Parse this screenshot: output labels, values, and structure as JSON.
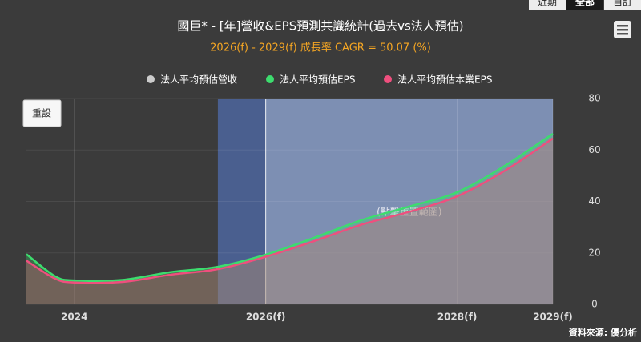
{
  "tabs": [
    "近期",
    "全部",
    "自訂"
  ],
  "reset_button": "重設",
  "chart_data": {
    "type": "line",
    "title": "國巨* - [年]營收&EPS預測共識統計(過去vs法人預估)",
    "subtitle": "2026(f) - 2029(f) 成長率 CAGR = 50.07 (%)",
    "annotation": "(點擊重置範圍)",
    "source": "資料來源: 優分析",
    "x": [
      2023.5,
      2023.8,
      2024,
      2024.5,
      2025,
      2025.5,
      2026,
      2026.5,
      2027,
      2027.5,
      2028,
      2028.5,
      2029
    ],
    "series": [
      {
        "name": "法人平均預估營收",
        "color": "#cccccc",
        "values": [
          null,
          null,
          null,
          null,
          null,
          null,
          null,
          null,
          null,
          null,
          null,
          null,
          null
        ]
      },
      {
        "name": "法人平均預估EPS",
        "color": "#3ddc6e",
        "values": [
          19.5,
          10.9,
          9.3,
          9.5,
          12.5,
          14.6,
          19.3,
          25.8,
          32.7,
          38,
          43.6,
          53.9,
          66.3
        ]
      },
      {
        "name": "法人平均預估本業EPS",
        "color": "#ef4f7e",
        "values": [
          17,
          10,
          8.5,
          8.7,
          11.5,
          13.7,
          18.5,
          24.5,
          31,
          36,
          42,
          52,
          64.5
        ]
      }
    ],
    "xlim": [
      2023.5,
      2029
    ],
    "xticks": [
      2024,
      {
        "value": 2026,
        "label": "2026(f)"
      },
      {
        "value": 2028,
        "label": "2028(f)"
      },
      {
        "value": 2029,
        "label": "2029(f)"
      }
    ],
    "ylim": [
      0,
      80
    ],
    "yticks": [
      0,
      20,
      40,
      60,
      80
    ],
    "plot_bands": [
      {
        "from": 2025.5,
        "to": 2026,
        "color": "#4a5f8f"
      },
      {
        "from": 2026,
        "to": 2029,
        "color": "#7d8fb3"
      }
    ]
  }
}
